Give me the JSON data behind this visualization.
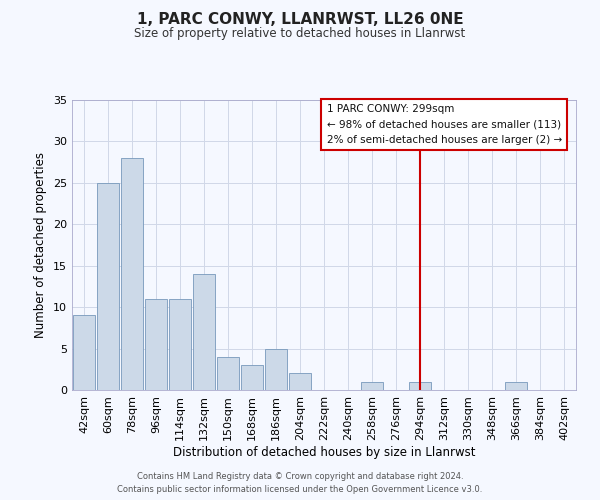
{
  "title": "1, PARC CONWY, LLANRWST, LL26 0NE",
  "subtitle": "Size of property relative to detached houses in Llanrwst",
  "xlabel": "Distribution of detached houses by size in Llanrwst",
  "ylabel": "Number of detached properties",
  "bar_color": "#ccd9e8",
  "bar_edge_color": "#7799bb",
  "bin_labels": [
    "42sqm",
    "60sqm",
    "78sqm",
    "96sqm",
    "114sqm",
    "132sqm",
    "150sqm",
    "168sqm",
    "186sqm",
    "204sqm",
    "222sqm",
    "240sqm",
    "258sqm",
    "276sqm",
    "294sqm",
    "312sqm",
    "330sqm",
    "348sqm",
    "366sqm",
    "384sqm",
    "402sqm"
  ],
  "bar_values": [
    9,
    25,
    28,
    11,
    11,
    14,
    4,
    3,
    5,
    2,
    0,
    0,
    1,
    0,
    1,
    0,
    0,
    0,
    1,
    0,
    0
  ],
  "ylim": [
    0,
    35
  ],
  "yticks": [
    0,
    5,
    10,
    15,
    20,
    25,
    30,
    35
  ],
  "property_line_x": 14,
  "property_line_label": "1 PARC CONWY: 299sqm",
  "legend_line1": "← 98% of detached houses are smaller (113)",
  "legend_line2": "2% of semi-detached houses are larger (2) →",
  "vline_color": "#cc0000",
  "legend_box_color": "#cc0000",
  "footer_line1": "Contains HM Land Registry data © Crown copyright and database right 2024.",
  "footer_line2": "Contains public sector information licensed under the Open Government Licence v3.0.",
  "background_color": "#f5f8ff",
  "grid_color": "#d0d8e8"
}
